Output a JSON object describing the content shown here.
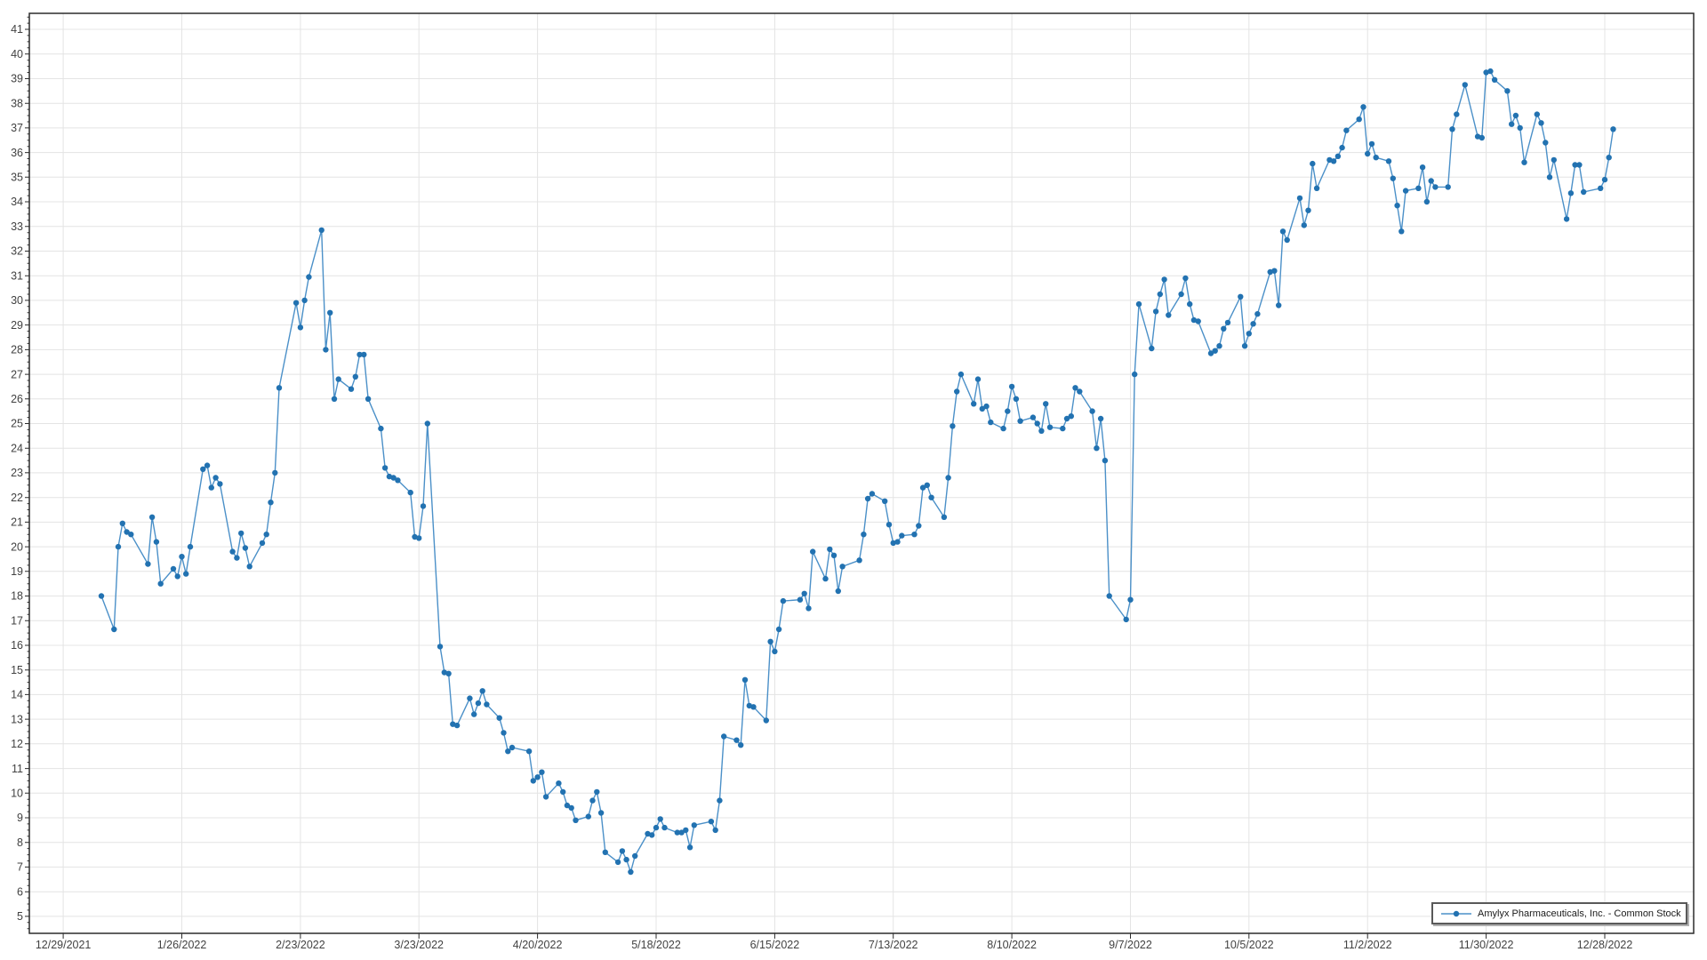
{
  "chart_data": {
    "type": "line",
    "title": "",
    "xlabel": "",
    "ylabel": "",
    "grid": true,
    "legend_position": "bottom-right",
    "colors": {
      "line": "#4b90c8",
      "marker": "#2272b1",
      "grid": "#e4e4e4",
      "axis": "#2b2b2b",
      "tick_label": "#424242"
    },
    "x_domain": [
      "2021-12-21",
      "2023-01-18"
    ],
    "y_domain": [
      4.31,
      41.65
    ],
    "y_ticks": {
      "min": 5,
      "max": 41,
      "step": 1
    },
    "x_ticks": [
      {
        "date": "2021-12-29",
        "label": "12/29/2021"
      },
      {
        "date": "2022-01-26",
        "label": "1/26/2022"
      },
      {
        "date": "2022-02-23",
        "label": "2/23/2022"
      },
      {
        "date": "2022-03-23",
        "label": "3/23/2022"
      },
      {
        "date": "2022-04-20",
        "label": "4/20/2022"
      },
      {
        "date": "2022-05-18",
        "label": "5/18/2022"
      },
      {
        "date": "2022-06-15",
        "label": "6/15/2022"
      },
      {
        "date": "2022-07-13",
        "label": "7/13/2022"
      },
      {
        "date": "2022-08-10",
        "label": "8/10/2022"
      },
      {
        "date": "2022-09-07",
        "label": "9/7/2022"
      },
      {
        "date": "2022-10-05",
        "label": "10/5/2022"
      },
      {
        "date": "2022-11-02",
        "label": "11/2/2022"
      },
      {
        "date": "2022-11-30",
        "label": "11/30/2022"
      },
      {
        "date": "2022-12-28",
        "label": "12/28/2022"
      }
    ],
    "series": [
      {
        "name": "Amylyx Pharmaceuticals, Inc. - Common Stock",
        "start_date": "2022-01-07",
        "dates_rule": "consecutive US trading days (weekends and listed market holidays skipped)",
        "holidays_skipped": [
          "2022-01-17",
          "2022-02-21",
          "2022-04-15",
          "2022-05-30",
          "2022-06-20",
          "2022-07-04",
          "2022-09-05",
          "2022-11-24",
          "2022-12-26"
        ],
        "values": [
          18.0,
          16.65,
          20.0,
          20.95,
          20.6,
          20.5,
          19.3,
          21.2,
          20.2,
          18.5,
          19.1,
          18.8,
          19.6,
          18.9,
          20.0,
          23.15,
          23.3,
          22.4,
          22.8,
          22.55,
          19.8,
          19.55,
          20.55,
          19.95,
          19.2,
          20.15,
          20.5,
          21.8,
          23.0,
          26.45,
          29.9,
          28.9,
          30.0,
          30.95,
          32.85,
          28.0,
          29.5,
          26.0,
          26.8,
          26.4,
          26.9,
          27.8,
          27.8,
          26.0,
          24.8,
          23.2,
          22.85,
          22.8,
          22.7,
          22.2,
          20.4,
          20.35,
          21.65,
          25.0,
          15.95,
          14.9,
          14.85,
          12.8,
          12.75,
          13.85,
          13.2,
          13.65,
          14.15,
          13.6,
          13.05,
          12.45,
          11.7,
          11.85,
          11.7,
          10.5,
          10.65,
          10.85,
          9.85,
          10.4,
          10.05,
          9.5,
          9.4,
          8.9,
          9.05,
          9.7,
          10.05,
          9.2,
          7.6,
          7.2,
          7.65,
          7.3,
          6.8,
          7.45,
          8.35,
          8.3,
          8.6,
          8.95,
          8.6,
          8.4,
          8.4,
          8.5,
          7.8,
          8.7,
          8.85,
          8.5,
          9.7,
          12.3,
          12.15,
          11.95,
          14.6,
          13.55,
          13.5,
          12.95,
          16.15,
          15.75,
          16.65,
          17.8,
          17.85,
          18.1,
          17.5,
          19.8,
          18.7,
          19.9,
          19.65,
          18.2,
          19.2,
          19.45,
          20.5,
          21.95,
          22.15,
          21.85,
          20.9,
          20.15,
          20.2,
          20.45,
          20.5,
          20.85,
          22.4,
          22.5,
          22.0,
          21.2,
          22.8,
          24.9,
          26.3,
          27.0,
          25.8,
          26.8,
          25.6,
          25.7,
          25.05,
          24.8,
          25.5,
          26.5,
          26.0,
          25.1,
          25.25,
          25.0,
          24.7,
          25.8,
          24.85,
          24.8,
          25.2,
          25.3,
          26.45,
          26.3,
          25.5,
          24.0,
          25.2,
          23.5,
          18.0,
          17.05,
          17.85,
          27.0,
          29.85,
          28.05,
          29.55,
          30.25,
          30.85,
          29.4,
          30.25,
          30.9,
          29.85,
          29.2,
          29.15,
          27.85,
          27.95,
          28.15,
          28.85,
          29.1,
          30.15,
          28.15,
          28.65,
          29.05,
          29.45,
          31.15,
          31.2,
          29.8,
          32.8,
          32.45,
          34.15,
          33.05,
          33.65,
          35.55,
          34.55,
          35.7,
          35.65,
          35.85,
          36.2,
          36.9,
          37.35,
          37.85,
          35.95,
          36.35,
          35.8,
          35.65,
          34.95,
          33.85,
          32.8,
          34.45,
          34.55,
          35.4,
          34.0,
          34.85,
          34.6,
          34.6,
          36.95,
          37.55,
          38.75,
          36.65,
          36.6,
          39.25,
          39.3,
          38.95,
          38.5,
          37.15,
          37.5,
          37.0,
          35.6,
          37.55,
          37.2,
          36.4,
          35.0,
          35.7,
          33.3,
          34.35,
          35.5,
          35.5,
          34.4,
          34.55,
          34.9,
          35.8,
          36.95
        ]
      }
    ]
  }
}
